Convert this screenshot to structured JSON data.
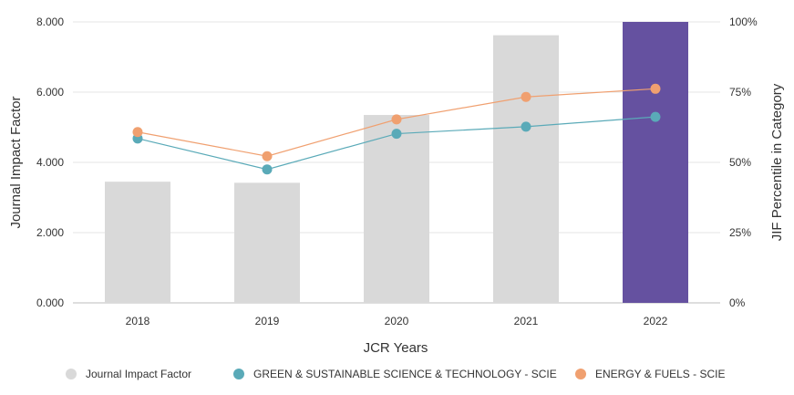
{
  "chart_data": {
    "type": "bar+line",
    "x_title": "JCR Years",
    "y_left_title": "Journal Impact Factor",
    "y_right_title": "JIF Percentile in Category",
    "categories": [
      "2018",
      "2019",
      "2020",
      "2021",
      "2022"
    ],
    "y_left_ticks": [
      "0.000",
      "2.000",
      "4.000",
      "6.000",
      "8.000"
    ],
    "y_left_range": [
      0,
      8
    ],
    "y_right_ticks": [
      "0%",
      "25%",
      "50%",
      "75%",
      "100%"
    ],
    "y_right_range": [
      0,
      100
    ],
    "bars": {
      "name": "Journal Impact Factor",
      "values": [
        3.45,
        3.42,
        5.35,
        7.62,
        8.0
      ],
      "colors": [
        "#d9d9d9",
        "#d9d9d9",
        "#d9d9d9",
        "#d9d9d9",
        "#6551a0"
      ]
    },
    "series": [
      {
        "name": "GREEN & SUSTAINABLE SCIENCE & TECHNOLOGY - SCIE",
        "color": "#5aaab8",
        "values": [
          58.5,
          47.5,
          60.2,
          62.7,
          66.2
        ]
      },
      {
        "name": "ENERGY & FUELS - SCIE",
        "color": "#f0a070",
        "values": [
          60.8,
          52.2,
          65.3,
          73.3,
          76.2
        ]
      }
    ],
    "legend": [
      {
        "label": "Journal Impact Factor",
        "color": "#d9d9d9"
      },
      {
        "label": "GREEN & SUSTAINABLE SCIENCE & TECHNOLOGY - SCIE",
        "color": "#5aaab8"
      },
      {
        "label": "ENERGY & FUELS - SCIE",
        "color": "#f0a070"
      }
    ]
  }
}
